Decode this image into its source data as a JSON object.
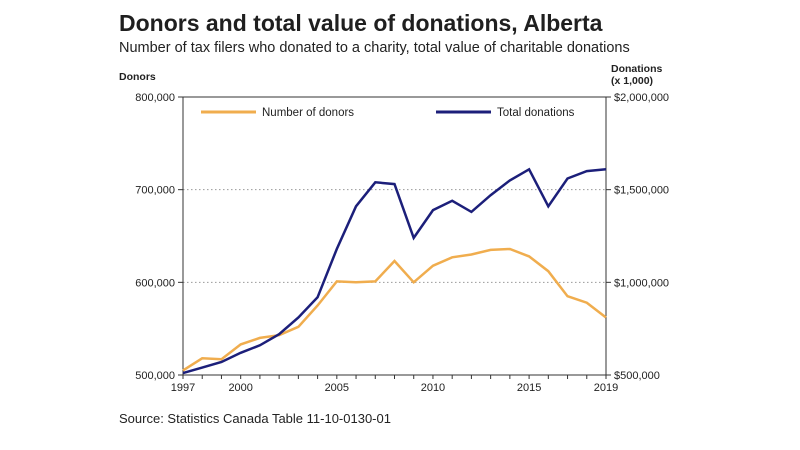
{
  "chart_data": {
    "type": "line",
    "title": "Donors and total value of donations, Alberta",
    "subtitle": "Number of tax filers who donated to a charity, total value of charitable donations",
    "source": "Source: Statistics Canada Table 11-10-0130-01",
    "x": [
      1997,
      1998,
      1999,
      2000,
      2001,
      2002,
      2003,
      2004,
      2005,
      2006,
      2007,
      2008,
      2009,
      2010,
      2011,
      2012,
      2013,
      2014,
      2015,
      2016,
      2017,
      2018,
      2019
    ],
    "x_ticks": [
      1997,
      2000,
      2005,
      2010,
      2015,
      2019
    ],
    "xlim": [
      1997,
      2019
    ],
    "y_left": {
      "label": "Donors",
      "lim": [
        500000,
        800000
      ],
      "ticks": [
        500000,
        600000,
        700000,
        800000
      ],
      "tick_labels": [
        "500,000",
        "600,000",
        "700,000",
        "800,000"
      ]
    },
    "y_right": {
      "label_line1": "Donations",
      "label_line2": "(x 1,000)",
      "lim": [
        500000,
        2000000
      ],
      "ticks": [
        500000,
        1000000,
        1500000,
        2000000
      ],
      "tick_labels": [
        "$500,000",
        "$1,000,000",
        "$1,500,000",
        "$2,000,000"
      ]
    },
    "grid_lines_at_left": [
      600000,
      700000
    ],
    "series": [
      {
        "name": "Number of donors",
        "axis": "left",
        "color": "#f0ad4e",
        "values": [
          505000,
          518000,
          517000,
          533000,
          540000,
          543000,
          552000,
          575000,
          601000,
          600000,
          601000,
          623000,
          600000,
          618000,
          627000,
          630000,
          635000,
          636000,
          628000,
          612000,
          585000,
          578000,
          562000
        ]
      },
      {
        "name": "Total donations",
        "axis": "right",
        "color": "#1c1f7a",
        "values": [
          510000,
          540000,
          570000,
          620000,
          660000,
          720000,
          810000,
          920000,
          1180000,
          1410000,
          1540000,
          1530000,
          1240000,
          1390000,
          1440000,
          1380000,
          1470000,
          1550000,
          1610000,
          1410000,
          1560000,
          1600000,
          1610000
        ]
      }
    ],
    "legend_position": "top"
  }
}
